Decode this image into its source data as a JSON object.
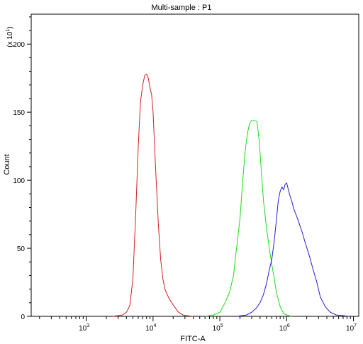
{
  "chart_data": {
    "type": "line",
    "title": "Multi-sample : P1",
    "xlabel": "FITC-A",
    "ylabel": "Count",
    "y_multiplier_label": "(x 10",
    "y_multiplier_exp": "1",
    "y_multiplier_close": ")",
    "x_scale": "log",
    "xlim": [
      150,
      12000000
    ],
    "ylim": [
      0,
      222
    ],
    "grid": false,
    "legend": "none",
    "x_ticks": [
      {
        "value": 1000,
        "base": "10",
        "exp": "3"
      },
      {
        "value": 10000,
        "base": "10",
        "exp": "4"
      },
      {
        "value": 100000,
        "base": "10",
        "exp": "5"
      },
      {
        "value": 1000000,
        "base": "10",
        "exp": "6"
      },
      {
        "value": 10000000,
        "base": "10",
        "exp": "7"
      }
    ],
    "y_ticks": [
      {
        "value": 0,
        "label": "0"
      },
      {
        "value": 50,
        "label": "50"
      },
      {
        "value": 100,
        "label": "100"
      },
      {
        "value": 150,
        "label": "150"
      },
      {
        "value": 200,
        "label": "200"
      }
    ],
    "series": [
      {
        "color": "#d42020",
        "x": [
          2500,
          3500,
          4000,
          4500,
          5000,
          5500,
          6000,
          6500,
          7000,
          7500,
          8000,
          8500,
          9000,
          9500,
          10000,
          11000,
          12000,
          13000,
          14000,
          15000,
          17000,
          19000,
          21000,
          24000,
          28000,
          32000,
          40000
        ],
        "y": [
          0,
          1,
          3,
          8,
          28,
          75,
          125,
          158,
          170,
          177,
          178,
          175,
          168,
          163,
          150,
          105,
          68,
          42,
          28,
          20,
          14,
          10,
          7,
          3,
          1,
          0.5,
          0
        ]
      },
      {
        "color": "#22d822",
        "x": [
          60000,
          80000,
          100000,
          120000,
          140000,
          160000,
          180000,
          200000,
          220000,
          240000,
          260000,
          280000,
          300000,
          330000,
          360000,
          390000,
          420000,
          450000,
          500000,
          550000,
          600000,
          650000,
          700000,
          800000,
          900000,
          1000000,
          1200000
        ],
        "y": [
          0,
          1,
          3,
          10,
          18,
          30,
          52,
          72,
          100,
          122,
          135,
          142,
          144,
          144,
          143,
          128,
          105,
          85,
          65,
          50,
          38,
          28,
          18,
          7,
          2,
          1,
          0
        ]
      },
      {
        "color": "#2020cc",
        "x": [
          180000,
          250000,
          300000,
          350000,
          400000,
          450000,
          500000,
          550000,
          600000,
          650000,
          700000,
          750000,
          800000,
          850000,
          900000,
          950000,
          1000000,
          1100000,
          1200000,
          1300000,
          1400000,
          1500000,
          1700000,
          1900000,
          2200000,
          2500000,
          2800000,
          3200000,
          3800000,
          4500000,
          5500000,
          7000000,
          8500000
        ],
        "y": [
          0,
          1,
          3,
          6,
          10,
          16,
          24,
          34,
          42,
          55,
          70,
          85,
          92,
          95,
          93,
          97,
          98,
          90,
          84,
          78,
          74,
          70,
          62,
          54,
          44,
          34,
          26,
          14,
          7,
          3,
          1,
          0.5,
          0
        ]
      }
    ]
  }
}
